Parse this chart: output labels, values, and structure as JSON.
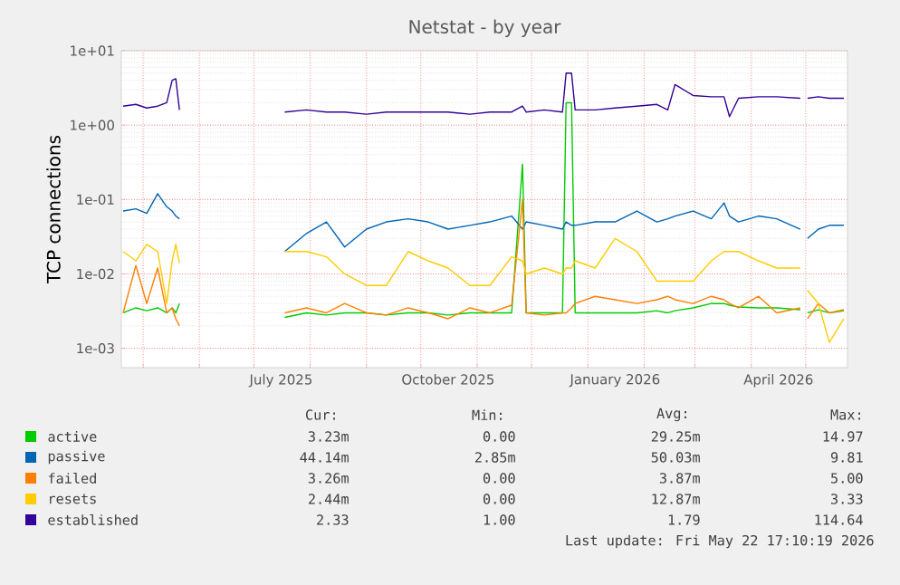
{
  "chart_data": {
    "type": "line",
    "title": "Netstat - by year",
    "ylabel": "TCP connections",
    "log": "y",
    "grid": true,
    "legend": "bottom",
    "marker": "none",
    "line_style": "solid",
    "xlim": [
      "2025-04-19",
      "2026-05-24"
    ],
    "ylim": [
      0.00055,
      10
    ],
    "yticks": [
      {
        "value": 0.001,
        "label": "1e-03"
      },
      {
        "value": 0.01,
        "label": "1e-02"
      },
      {
        "value": 0.1,
        "label": "1e-01"
      },
      {
        "value": 1,
        "label": "1e+00"
      },
      {
        "value": 10,
        "label": "1e+01"
      }
    ],
    "xticks": [
      {
        "value": "2025-05-01",
        "label": null
      },
      {
        "value": "2025-06-01",
        "label": null
      },
      {
        "value": "2025-07-01",
        "label": null
      },
      {
        "value": "2025-07-16",
        "label": "July 2025"
      },
      {
        "value": "2025-08-01",
        "label": null
      },
      {
        "value": "2025-09-01",
        "label": null
      },
      {
        "value": "2025-10-01",
        "label": null
      },
      {
        "value": "2025-10-16",
        "label": "October 2025"
      },
      {
        "value": "2025-11-01",
        "label": null
      },
      {
        "value": "2025-12-01",
        "label": null
      },
      {
        "value": "2026-01-01",
        "label": null
      },
      {
        "value": "2026-01-16",
        "label": "January 2026"
      },
      {
        "value": "2026-02-01",
        "label": null
      },
      {
        "value": "2026-03-01",
        "label": null
      },
      {
        "value": "2026-04-01",
        "label": null
      },
      {
        "value": "2026-04-16",
        "label": "April 2026"
      },
      {
        "value": "2026-05-01",
        "label": null
      }
    ],
    "x": [
      "2025-04-20",
      "2025-04-27",
      "2025-05-03",
      "2025-05-09",
      "2025-05-14",
      "2025-05-17",
      "2025-05-19",
      "2025-05-21",
      "2025-06-15",
      "2025-07-18",
      "2025-07-30",
      "2025-08-10",
      "2025-08-20",
      "2025-09-01",
      "2025-09-12",
      "2025-09-24",
      "2025-10-05",
      "2025-10-16",
      "2025-10-28",
      "2025-11-08",
      "2025-11-20",
      "2025-11-26",
      "2025-11-28",
      "2025-12-08",
      "2025-12-18",
      "2025-12-20",
      "2025-12-23",
      "2025-12-25",
      "2026-01-05",
      "2026-01-16",
      "2026-01-28",
      "2026-02-08",
      "2026-02-14",
      "2026-02-18",
      "2026-02-28",
      "2026-03-10",
      "2026-03-17",
      "2026-03-20",
      "2026-03-25",
      "2026-04-05",
      "2026-04-15",
      "2026-04-28",
      "2026-04-30",
      "2026-05-02",
      "2026-05-08",
      "2026-05-14",
      "2026-05-22"
    ],
    "series": [
      {
        "name": "active",
        "color": "#00cc00",
        "values": [
          0.003,
          0.0035,
          0.0032,
          0.0035,
          0.003,
          0.0035,
          0.003,
          0.004,
          null,
          0.0026,
          0.003,
          0.0028,
          0.003,
          0.003,
          0.0028,
          0.003,
          0.003,
          0.0028,
          0.003,
          0.003,
          0.003,
          0.3,
          0.003,
          0.003,
          0.003,
          2.0,
          2.0,
          0.003,
          0.003,
          0.003,
          0.003,
          0.0032,
          0.003,
          0.0032,
          0.0035,
          0.004,
          0.004,
          0.0038,
          0.0036,
          0.0035,
          0.0035,
          0.0033,
          null,
          0.003,
          0.0033,
          0.003,
          0.0032
        ]
      },
      {
        "name": "passive",
        "color": "#0066b3",
        "values": [
          0.07,
          0.075,
          0.065,
          0.12,
          0.08,
          0.07,
          0.06,
          0.055,
          null,
          0.02,
          0.035,
          0.05,
          0.023,
          0.04,
          0.05,
          0.055,
          0.05,
          0.04,
          0.045,
          0.05,
          0.06,
          0.04,
          0.05,
          0.045,
          0.04,
          0.05,
          0.045,
          0.045,
          0.05,
          0.05,
          0.07,
          0.05,
          0.055,
          0.06,
          0.07,
          0.055,
          0.09,
          0.06,
          0.05,
          0.06,
          0.055,
          0.04,
          null,
          0.03,
          0.04,
          0.045,
          0.045
        ]
      },
      {
        "name": "failed",
        "color": "#ff8000",
        "values": [
          0.003,
          0.013,
          0.004,
          0.012,
          0.003,
          0.0035,
          0.0025,
          0.002,
          null,
          0.003,
          0.0035,
          0.003,
          0.004,
          0.003,
          0.0028,
          0.0035,
          0.003,
          0.0025,
          0.0035,
          0.003,
          0.0038,
          0.1,
          0.003,
          0.0028,
          0.003,
          0.003,
          0.0035,
          0.004,
          0.005,
          0.0045,
          0.004,
          0.0045,
          0.005,
          0.0045,
          0.004,
          0.005,
          0.0045,
          0.004,
          0.0035,
          0.005,
          0.003,
          0.0035,
          null,
          0.0025,
          0.004,
          0.003,
          0.0033
        ]
      },
      {
        "name": "resets",
        "color": "#ffcc00",
        "values": [
          0.02,
          0.015,
          0.025,
          0.02,
          0.004,
          0.015,
          0.025,
          0.014,
          null,
          0.02,
          0.02,
          0.017,
          0.01,
          0.007,
          0.007,
          0.02,
          0.015,
          0.012,
          0.007,
          0.007,
          0.017,
          0.015,
          0.01,
          0.012,
          0.01,
          0.012,
          0.012,
          0.015,
          0.012,
          0.03,
          0.02,
          0.008,
          0.008,
          0.008,
          0.008,
          0.015,
          0.02,
          0.02,
          0.02,
          0.015,
          0.012,
          0.012,
          null,
          0.006,
          0.004,
          0.0012,
          0.0025
        ]
      },
      {
        "name": "established",
        "color": "#330099",
        "values": [
          1.8,
          1.9,
          1.7,
          1.8,
          2.0,
          4.0,
          4.2,
          1.6,
          null,
          1.5,
          1.6,
          1.5,
          1.5,
          1.4,
          1.5,
          1.5,
          1.5,
          1.5,
          1.4,
          1.5,
          1.5,
          1.8,
          1.5,
          1.6,
          1.5,
          5.0,
          5.0,
          1.6,
          1.6,
          1.7,
          1.8,
          1.9,
          1.6,
          3.5,
          2.5,
          2.4,
          2.4,
          1.3,
          2.3,
          2.4,
          2.4,
          2.3,
          null,
          2.3,
          2.4,
          2.3,
          2.3
        ]
      }
    ],
    "annotations": [
      "Cur:",
      "Min:",
      "Avg:",
      "Max:",
      "3.23m",
      "0.00",
      "29.25m",
      "14.97",
      "44.14m",
      "2.85m",
      "50.03m",
      "9.81",
      "3.26m",
      "0.00",
      "3.87m",
      "5.00",
      "2.44m",
      "0.00",
      "12.87m",
      "3.33",
      "2.33",
      "1.00",
      "1.79",
      "114.64",
      "Last update: Fri May 22 17:10:19 2026"
    ]
  }
}
